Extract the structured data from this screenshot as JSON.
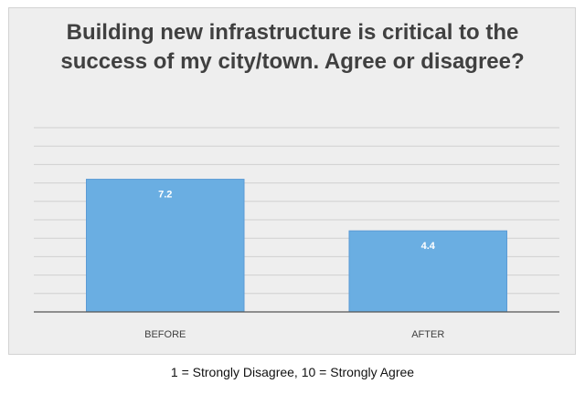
{
  "chart_data": {
    "type": "bar",
    "title": "Building new infrastructure is critical to the success of my city/town. Agree or disagree?",
    "categories": [
      "BEFORE",
      "AFTER"
    ],
    "values": [
      7.2,
      4.4
    ],
    "data_labels": [
      "7.2",
      "4.4"
    ],
    "ylim": [
      0,
      10
    ],
    "grid": true,
    "legend": "none",
    "colors": {
      "bar_fill": "#6aaee2",
      "bar_stroke": "#5b9bd5",
      "gridline": "#d0d0d0",
      "axis": "#555555",
      "background": "#eeeeee",
      "label_text": "#404040",
      "data_label_text": "#ffffff"
    }
  },
  "footnote": "1 = Strongly Disagree, 10 = Strongly Agree"
}
